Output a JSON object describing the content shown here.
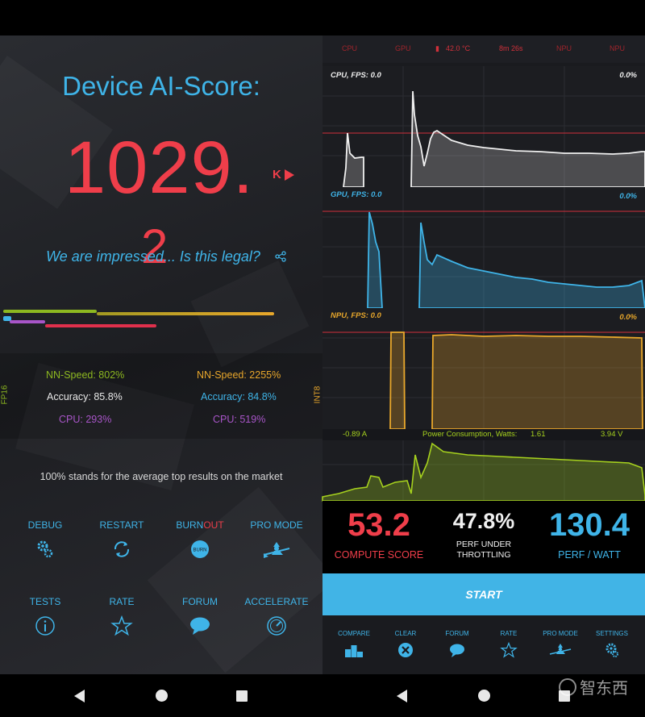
{
  "left": {
    "title": "Device AI-Score:",
    "score": "1029.",
    "score_overflow": "2",
    "k_label": "K",
    "tagline": "We are impressed... Is this legal?",
    "share_icon": "share-icon",
    "fp_label": "FP16",
    "int_label": "INT8",
    "fp16": {
      "nn_speed": "NN-Speed:  802%",
      "accuracy": "Accuracy:  85.8%",
      "cpu": "CPU:  293%"
    },
    "int8": {
      "nn_speed": "NN-Speed:  2255%",
      "accuracy": "Accuracy:  84.8%",
      "cpu": "CPU:  519%"
    },
    "market_note": "100% stands for the average top results on the market",
    "buttons_row1": [
      {
        "label": "DEBUG",
        "icon": "gears-icon"
      },
      {
        "label": "RESTART",
        "icon": "refresh-icon"
      },
      {
        "label_a": "BURN",
        "label_b": "OUT",
        "icon": "burn-icon"
      },
      {
        "label": "PRO MODE",
        "icon": "witch-icon"
      }
    ],
    "buttons_row2": [
      {
        "label": "TESTS",
        "icon": "info-icon"
      },
      {
        "label": "RATE",
        "icon": "star-icon"
      },
      {
        "label": "FORUM",
        "icon": "chat-icon"
      },
      {
        "label": "ACCELERATE",
        "icon": "gauge-icon"
      }
    ],
    "colors": {
      "accent": "#3fb4e8",
      "score": "#ef3e4a",
      "green": "#8db820",
      "orange": "#e8a72b",
      "purple": "#a855c8"
    }
  },
  "right": {
    "header": {
      "cpu": "CPU",
      "gpu": "GPU",
      "temp": "42.0 °C",
      "time": "8m 26s",
      "npu1": "NPU",
      "npu2": "NPU"
    },
    "cpu_chart": {
      "label": "CPU, FPS:  0.0",
      "pct": "0.0%"
    },
    "gpu_chart": {
      "label": "GPU, FPS:  0.0",
      "pct": "0.0%"
    },
    "npu_chart": {
      "label": "NPU, FPS:  0.0",
      "pct": "0.0%"
    },
    "power": {
      "current": "-0.89 A",
      "title": "Power Consumption, Watts:",
      "watts": "1.61",
      "volts": "3.94 V"
    },
    "metrics": {
      "compute_value": "53.2",
      "compute_label": "COMPUTE SCORE",
      "throttle_value": "47.8%",
      "throttle_label_1": "PERF UNDER",
      "throttle_label_2": "THROTTLING",
      "perf_value": "130.4",
      "perf_label": "PERF / WATT"
    },
    "start_label": "START",
    "bottom": [
      {
        "label": "COMPARE",
        "icon": "podium-icon"
      },
      {
        "label": "CLEAR",
        "icon": "clear-icon"
      },
      {
        "label": "FORUM",
        "icon": "chat-icon"
      },
      {
        "label": "RATE",
        "icon": "star-icon"
      },
      {
        "label": "PRO MODE",
        "icon": "witch-icon"
      },
      {
        "label": "SETTINGS",
        "icon": "gear-icon"
      }
    ]
  },
  "watermark": "智东西"
}
